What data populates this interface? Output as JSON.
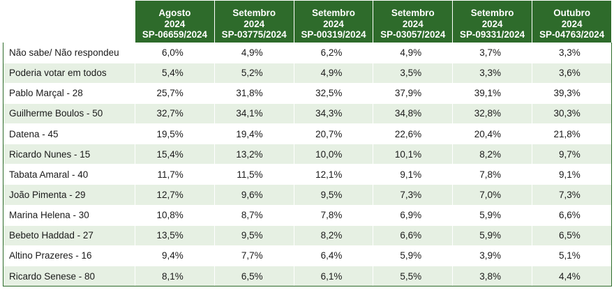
{
  "columns": [
    {
      "month": "Agosto",
      "year": "2024",
      "code": "SP-06659/2024"
    },
    {
      "month": "Setembro",
      "year": "2024",
      "code": "SP-03775/2024"
    },
    {
      "month": "Setembro",
      "year": "2024",
      "code": "SP-00319/2024"
    },
    {
      "month": "Setembro",
      "year": "2024",
      "code": "SP-03057/2024"
    },
    {
      "month": "Setembro",
      "year": "2024",
      "code": "SP-09331/2024"
    },
    {
      "month": "Outubro",
      "year": "2024",
      "code": "SP-04763/2024"
    }
  ],
  "rows": [
    {
      "label": "Não sabe/ Não respondeu",
      "values": [
        "6,0%",
        "4,9%",
        "6,2%",
        "4,9%",
        "3,7%",
        "3,3%"
      ]
    },
    {
      "label": "Poderia votar em todos",
      "values": [
        "5,4%",
        "5,2%",
        "4,9%",
        "3,5%",
        "3,3%",
        "3,6%"
      ]
    },
    {
      "label": "Pablo Marçal - 28",
      "values": [
        "25,7%",
        "31,8%",
        "32,5%",
        "37,9%",
        "39,1%",
        "39,3%"
      ]
    },
    {
      "label": "Guilherme Boulos - 50",
      "values": [
        "32,7%",
        "34,1%",
        "34,3%",
        "34,8%",
        "32,8%",
        "30,3%"
      ]
    },
    {
      "label": "Datena - 45",
      "values": [
        "19,5%",
        "19,4%",
        "20,7%",
        "22,6%",
        "20,4%",
        "21,8%"
      ]
    },
    {
      "label": "Ricardo Nunes - 15",
      "values": [
        "15,4%",
        "13,2%",
        "10,0%",
        "10,1%",
        "8,2%",
        "9,7%"
      ]
    },
    {
      "label": "Tabata Amaral - 40",
      "values": [
        "11,7%",
        "11,5%",
        "12,1%",
        "9,1%",
        "7,8%",
        "9,1%"
      ]
    },
    {
      "label": "João Pimenta - 29",
      "values": [
        "12,7%",
        "9,6%",
        "9,5%",
        "7,3%",
        "7,0%",
        "7,3%"
      ]
    },
    {
      "label": "Marina Helena - 30",
      "values": [
        "10,8%",
        "8,7%",
        "7,8%",
        "6,9%",
        "5,9%",
        "6,6%"
      ]
    },
    {
      "label": "Bebeto Haddad - 27",
      "values": [
        "13,5%",
        "9,5%",
        "8,2%",
        "6,6%",
        "5,9%",
        "6,5%"
      ]
    },
    {
      "label": "Altino Prazeres - 16",
      "values": [
        "9,4%",
        "7,7%",
        "6,4%",
        "5,9%",
        "3,9%",
        "5,1%"
      ]
    },
    {
      "label": "Ricardo Senese - 80",
      "values": [
        "8,1%",
        "6,5%",
        "6,1%",
        "5,5%",
        "3,8%",
        "4,4%"
      ]
    }
  ]
}
